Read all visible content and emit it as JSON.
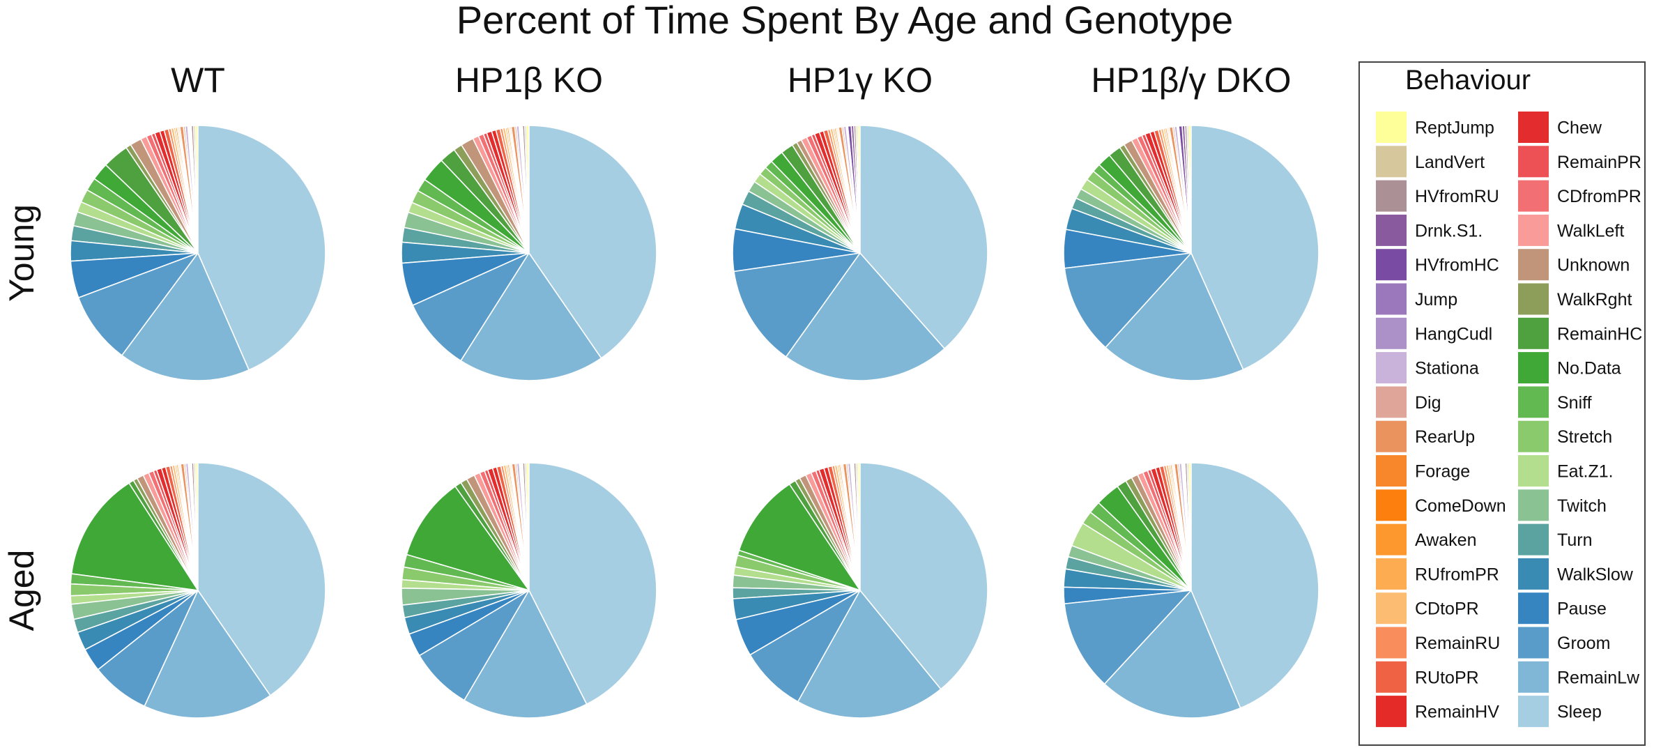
{
  "chart_data": {
    "type": "pie",
    "title": "Percent of Time Spent By Age and Genotype",
    "genotypes": [
      "WT",
      "HP1β KO",
      "HP1γ KO",
      "HP1β/γ DKO"
    ],
    "ages": [
      "Young",
      "Aged"
    ],
    "legend": {
      "title": "Behaviour",
      "placement": "right"
    },
    "categories": [
      "ReptJump",
      "LandVert",
      "HVfromRU",
      "Drnk.S1.",
      "HVfromHC",
      "Jump",
      "HangCudl",
      "Stationa",
      "Dig",
      "RearUp",
      "Forage",
      "ComeDown",
      "Awaken",
      "RUfromPR",
      "CDtoPR",
      "RemainRU",
      "RUtoPR",
      "RemainHV",
      "Chew",
      "RemainPR",
      "CDfromPR",
      "WalkLeft",
      "Unknown",
      "WalkRght",
      "RemainHC",
      "No.Data",
      "Sniff",
      "Stretch",
      "Eat.Z1.",
      "Twitch",
      "Turn",
      "WalkSlow",
      "Pause",
      "Groom",
      "RemainLw",
      "Sleep"
    ],
    "colors": [
      "#ffff99",
      "#d6c89c",
      "#ab9096",
      "#8a5a9e",
      "#7a4ba2",
      "#9a78bb",
      "#ab91c8",
      "#c9b3da",
      "#dea598",
      "#ea935e",
      "#f8862a",
      "#fd7f0e",
      "#fd982f",
      "#fdac52",
      "#fcbd72",
      "#f98d5b",
      "#ef6244",
      "#e52b27",
      "#e32c2e",
      "#ed5155",
      "#f26f73",
      "#f99b98",
      "#c1957a",
      "#8d9e5a",
      "#4ea13e",
      "#3fa836",
      "#62b851",
      "#8bca6c",
      "#b3de8e",
      "#8ac294",
      "#5ba3a0",
      "#3a8bb3",
      "#3685c1",
      "#5a9cc9",
      "#80b6d6",
      "#a6cee3"
    ],
    "panels": [
      {
        "genotype": "WT",
        "age": "Young",
        "values": [
          0.3,
          0.2,
          0.25,
          0.1,
          0.1,
          0.1,
          0.1,
          0.3,
          0.2,
          0.4,
          0.15,
          0.15,
          0.2,
          0.2,
          0.3,
          0.3,
          0.5,
          0.5,
          0.6,
          0.4,
          0.6,
          0.7,
          1.3,
          0.6,
          3.0,
          2.0,
          1.5,
          1.5,
          1.2,
          1.6,
          1.7,
          2.3,
          4.2,
          8.2,
          15.0,
          39.0
        ]
      },
      {
        "genotype": "HP1β KO",
        "age": "Young",
        "values": [
          0.3,
          0.2,
          0.25,
          0.1,
          0.1,
          0.1,
          0.1,
          0.3,
          0.2,
          0.4,
          0.15,
          0.15,
          0.2,
          0.2,
          0.3,
          0.3,
          0.5,
          0.5,
          0.6,
          0.4,
          0.6,
          0.7,
          1.5,
          1.0,
          1.9,
          2.9,
          1.5,
          1.5,
          1.2,
          1.8,
          1.7,
          2.4,
          5.0,
          8.5,
          17.0,
          37.0
        ]
      },
      {
        "genotype": "HP1γ KO",
        "age": "Young",
        "values": [
          0.3,
          0.2,
          0.25,
          0.3,
          0.4,
          0.1,
          0.1,
          0.3,
          0.2,
          0.4,
          0.15,
          0.15,
          0.2,
          0.2,
          0.3,
          0.3,
          0.5,
          0.5,
          0.6,
          0.4,
          0.6,
          0.7,
          0.6,
          0.6,
          1.5,
          1.6,
          1.0,
          1.0,
          1.1,
          1.3,
          1.7,
          3.0,
          5.0,
          12.0,
          20.0,
          36.0
        ]
      },
      {
        "genotype": "HP1β/γ DKO",
        "age": "Young",
        "values": [
          0.3,
          0.2,
          0.25,
          0.3,
          0.4,
          0.1,
          0.1,
          0.3,
          0.2,
          0.4,
          0.15,
          0.15,
          0.2,
          0.2,
          0.3,
          0.3,
          0.5,
          0.5,
          0.6,
          0.4,
          0.6,
          0.7,
          1.0,
          0.6,
          1.5,
          1.6,
          1.0,
          1.2,
          1.3,
          1.2,
          1.3,
          2.5,
          4.5,
          10.5,
          17.0,
          40.0
        ]
      },
      {
        "genotype": "WT",
        "age": "Aged",
        "values": [
          0.3,
          0.2,
          0.25,
          0.1,
          0.1,
          0.1,
          0.1,
          0.3,
          0.2,
          0.4,
          0.15,
          0.15,
          0.2,
          0.2,
          0.3,
          0.3,
          0.5,
          0.5,
          0.6,
          0.4,
          0.6,
          0.7,
          0.8,
          0.5,
          0.6,
          13.0,
          1.2,
          1.4,
          1.0,
          1.8,
          1.6,
          2.2,
          2.8,
          7.0,
          15.5,
          38.0
        ]
      },
      {
        "genotype": "HP1β KO",
        "age": "Aged",
        "values": [
          0.3,
          0.2,
          0.25,
          0.1,
          0.1,
          0.1,
          0.1,
          0.3,
          0.2,
          0.4,
          0.15,
          0.15,
          0.2,
          0.2,
          0.3,
          0.3,
          0.5,
          0.5,
          0.6,
          0.4,
          0.6,
          0.7,
          1.0,
          0.8,
          0.8,
          10.0,
          1.5,
          1.5,
          1.0,
          2.0,
          1.5,
          2.0,
          2.8,
          7.5,
          15.0,
          40.0
        ]
      },
      {
        "genotype": "HP1γ KO",
        "age": "Aged",
        "values": [
          0.3,
          0.2,
          0.25,
          0.1,
          0.1,
          0.1,
          0.1,
          0.3,
          0.2,
          0.4,
          0.15,
          0.15,
          0.2,
          0.2,
          0.3,
          0.3,
          0.5,
          0.5,
          0.6,
          0.4,
          0.6,
          0.7,
          0.8,
          0.6,
          0.8,
          10.0,
          0.6,
          1.4,
          1.0,
          1.5,
          1.3,
          2.5,
          4.5,
          8.0,
          18.0,
          37.0
        ]
      },
      {
        "genotype": "HP1β/γ DKO",
        "age": "Aged",
        "values": [
          0.3,
          0.2,
          0.25,
          0.1,
          0.1,
          0.1,
          0.1,
          0.3,
          0.2,
          0.4,
          0.15,
          0.15,
          0.2,
          0.2,
          0.3,
          0.3,
          0.5,
          0.5,
          0.6,
          0.4,
          0.6,
          0.7,
          0.8,
          0.8,
          1.2,
          3.0,
          1.5,
          1.6,
          3.0,
          1.4,
          1.5,
          2.2,
          2.0,
          11.0,
          17.5,
          42.0
        ]
      }
    ]
  }
}
